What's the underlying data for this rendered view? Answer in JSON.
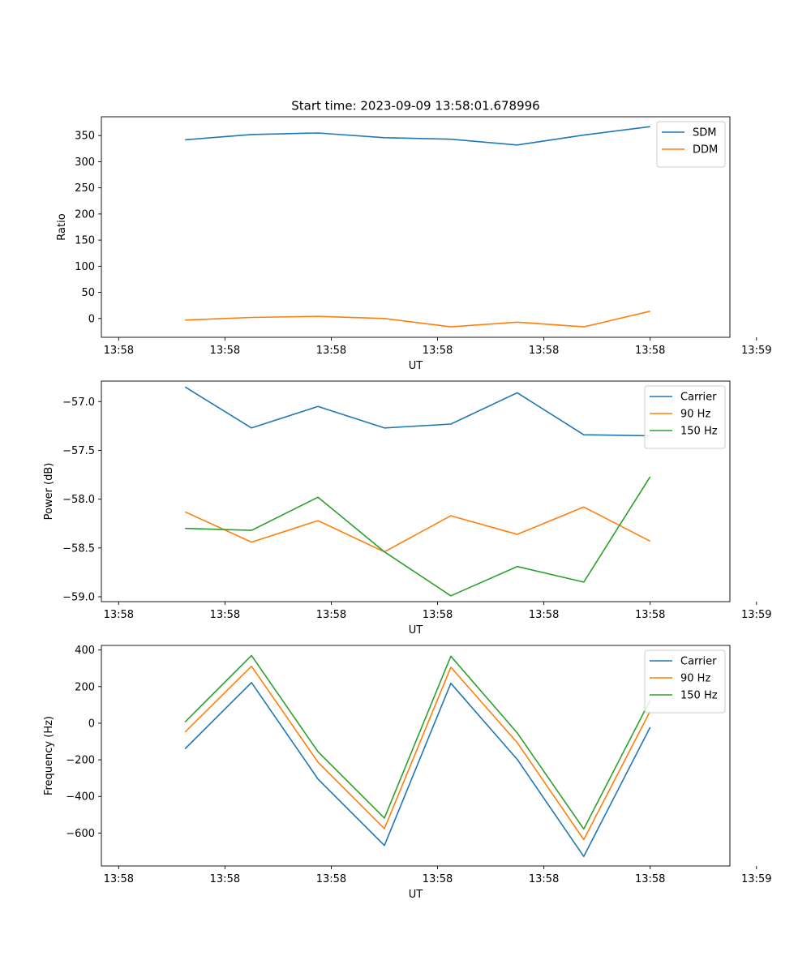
{
  "figure": {
    "title": "Start time: 2023-09-09 13:58:01.678996"
  },
  "chart_data": [
    {
      "type": "line",
      "title": "Start time: 2023-09-09 13:58:01.678996",
      "xlabel": "UT",
      "ylabel": "Ratio",
      "xlim": [
        -0.13,
        4.6
      ],
      "ylim": [
        -36,
        386
      ],
      "x": [
        0.5,
        1.0,
        1.5,
        2.0,
        2.5,
        3.0,
        3.5,
        4.0
      ],
      "xticks": [
        0,
        0.8,
        1.6,
        2.4,
        3.2,
        4.0,
        4.8
      ],
      "xtick_labels": [
        "13:58",
        "13:58",
        "13:58",
        "13:58",
        "13:58",
        "13:58",
        "13:59"
      ],
      "yticks": [
        0,
        50,
        100,
        150,
        200,
        250,
        300,
        350
      ],
      "ytick_labels": [
        "0",
        "50",
        "100",
        "150",
        "200",
        "250",
        "300",
        "350"
      ],
      "legend": "top-right",
      "series": [
        {
          "name": "SDM",
          "color": "#1f77b4",
          "values": [
            342,
            352,
            355,
            346,
            343,
            332,
            351,
            367
          ]
        },
        {
          "name": "DDM",
          "color": "#ff7f0e",
          "values": [
            -3,
            2,
            4,
            0,
            -16,
            -7,
            -16,
            14
          ]
        }
      ]
    },
    {
      "type": "line",
      "xlabel": "UT",
      "ylabel": "Power (dB)",
      "xlim": [
        -0.13,
        4.6
      ],
      "ylim": [
        -59.05,
        -56.79
      ],
      "x": [
        0.5,
        1.0,
        1.5,
        2.0,
        2.5,
        3.0,
        3.5,
        4.0
      ],
      "xticks": [
        0,
        0.8,
        1.6,
        2.4,
        3.2,
        4.0,
        4.8
      ],
      "xtick_labels": [
        "13:58",
        "13:58",
        "13:58",
        "13:58",
        "13:58",
        "13:58",
        "13:59"
      ],
      "yticks": [
        -57.0,
        -57.5,
        -58.0,
        -58.5,
        -59.0
      ],
      "ytick_labels": [
        "−57.0",
        "−57.5",
        "−58.0",
        "−58.5",
        "−59.0"
      ],
      "legend": "top-right",
      "series": [
        {
          "name": "Carrier",
          "color": "#1f77b4",
          "values": [
            -56.85,
            -57.27,
            -57.05,
            -57.27,
            -57.23,
            -56.91,
            -57.34,
            -57.35
          ]
        },
        {
          "name": "90 Hz",
          "color": "#ff7f0e",
          "values": [
            -58.13,
            -58.44,
            -58.22,
            -58.54,
            -58.17,
            -58.36,
            -58.08,
            -58.43
          ]
        },
        {
          "name": "150 Hz",
          "color": "#2ca02c",
          "values": [
            -58.3,
            -58.32,
            -57.98,
            -58.54,
            -58.99,
            -58.69,
            -58.85,
            -57.77
          ]
        }
      ]
    },
    {
      "type": "line",
      "xlabel": "UT",
      "ylabel": "Frequency (Hz)",
      "xlim": [
        -0.13,
        4.6
      ],
      "ylim": [
        -780,
        425
      ],
      "x": [
        0.5,
        1.0,
        1.5,
        2.0,
        2.5,
        3.0,
        3.5,
        4.0
      ],
      "xticks": [
        0,
        0.8,
        1.6,
        2.4,
        3.2,
        4.0,
        4.8
      ],
      "xtick_labels": [
        "13:58",
        "13:58",
        "13:58",
        "13:58",
        "13:58",
        "13:58",
        "13:59"
      ],
      "yticks": [
        400,
        200,
        0,
        -200,
        -400,
        -600
      ],
      "ytick_labels": [
        "400",
        "200",
        "0",
        "−200",
        "−400",
        "−600"
      ],
      "legend": "top-right",
      "series": [
        {
          "name": "Carrier",
          "color": "#1f77b4",
          "values": [
            -140,
            222,
            -305,
            -668,
            218,
            -198,
            -728,
            -22
          ]
        },
        {
          "name": "90 Hz",
          "color": "#ff7f0e",
          "values": [
            -48,
            311,
            -213,
            -576,
            306,
            -106,
            -636,
            66
          ]
        },
        {
          "name": "150 Hz",
          "color": "#2ca02c",
          "values": [
            7,
            370,
            -156,
            -518,
            366,
            -53,
            -578,
            126
          ]
        }
      ]
    }
  ]
}
